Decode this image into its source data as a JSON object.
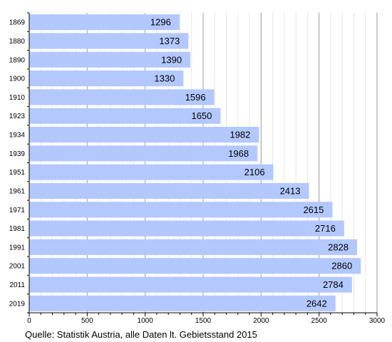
{
  "chart_data": {
    "type": "bar",
    "orientation": "horizontal",
    "title": "",
    "xlabel": "",
    "ylabel": "",
    "categories": [
      "1869",
      "1880",
      "1890",
      "1900",
      "1910",
      "1923",
      "1934",
      "1939",
      "1951",
      "1961",
      "1971",
      "1981",
      "1991",
      "2001",
      "2011",
      "2019"
    ],
    "values": [
      1296,
      1373,
      1390,
      1330,
      1596,
      1650,
      1982,
      1968,
      2106,
      2413,
      2615,
      2716,
      2828,
      2860,
      2784,
      2642
    ],
    "xlim": [
      0,
      3000
    ],
    "x_ticks": [
      0,
      500,
      1000,
      1500,
      2000,
      2500,
      3000
    ],
    "grid": true,
    "data_labels": true,
    "bar_color": "#b3c8ff"
  },
  "source": "Quelle: Statistik Austria, alle Daten lt. Gebietsstand 2015"
}
